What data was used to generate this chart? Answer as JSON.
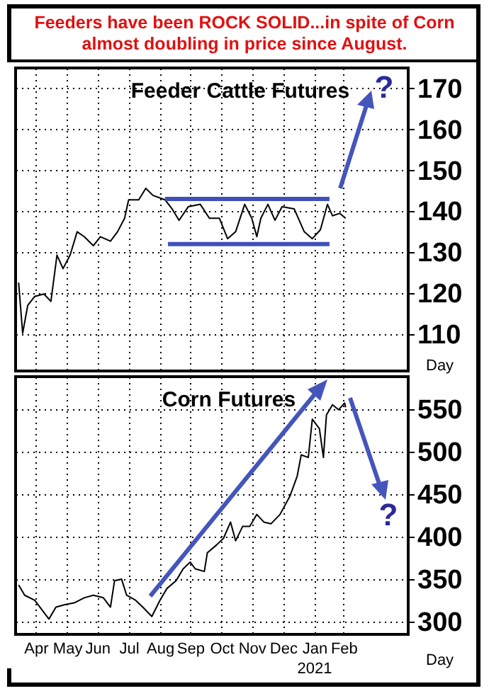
{
  "chart_data": [
    {
      "type": "line",
      "title": "Feeders have been ROCK SOLID...in spite of Corn almost doubling in price since August.",
      "subtitle": "Feeder Cattle Futures",
      "ylabel": "Day",
      "x": [
        "2020-03-29",
        "2020-04-02",
        "2020-04-07",
        "2020-04-14",
        "2020-04-23",
        "2020-04-30",
        "2020-05-06",
        "2020-05-12",
        "2020-05-19",
        "2020-05-26",
        "2020-06-02",
        "2020-06-11",
        "2020-06-18",
        "2020-06-28",
        "2020-07-05",
        "2020-07-12",
        "2020-07-16",
        "2020-07-26",
        "2020-08-02",
        "2020-08-09",
        "2020-08-21",
        "2020-08-28",
        "2020-09-04",
        "2020-09-13",
        "2020-09-25",
        "2020-10-04",
        "2020-10-14",
        "2020-10-22",
        "2020-10-30",
        "2020-11-08",
        "2020-11-15",
        "2020-11-20",
        "2020-11-24",
        "2020-12-01",
        "2020-12-08",
        "2020-12-15",
        "2020-12-27",
        "2021-01-06",
        "2021-01-14",
        "2021-01-22",
        "2021-01-29",
        "2021-02-03",
        "2021-02-10",
        "2021-02-16"
      ],
      "series": [
        {
          "color": "#000000",
          "values": [
            122.6,
            110.2,
            117,
            119.2,
            119.8,
            118,
            129.3,
            126,
            129.3,
            135,
            133.8,
            131.6,
            133.8,
            132.7,
            135,
            138.3,
            142.8,
            142.8,
            145.6,
            143.9,
            142.8,
            140.6,
            137.8,
            141.1,
            141.7,
            138.3,
            138.3,
            133.3,
            135,
            141.7,
            138.3,
            133.8,
            138.3,
            141.7,
            137.8,
            141.1,
            140.6,
            135,
            133.3,
            135.5,
            141.7,
            138.9,
            139.5,
            138.3
          ]
        },
        {
          "type": "line",
          "color": "#4050b8",
          "x": [
            "2020-08-21",
            "2021-01-31"
          ],
          "values": [
            143,
            143
          ]
        },
        {
          "type": "line",
          "color": "#4050b8",
          "x": [
            "2020-08-24",
            "2021-01-31"
          ],
          "values": [
            132,
            132
          ]
        }
      ],
      "xlim": [
        "2020-03-26",
        "2021-04-19"
      ],
      "xticks": [
        {
          "value": "2020-04-15",
          "label": null
        },
        {
          "value": "2020-05-16",
          "label": null
        },
        {
          "value": "2020-06-15",
          "label": null
        },
        {
          "value": "2020-07-16",
          "label": null
        },
        {
          "value": "2020-08-16",
          "label": null
        },
        {
          "value": "2020-09-15",
          "label": null
        },
        {
          "value": "2020-10-16",
          "label": null
        },
        {
          "value": "2020-11-15",
          "label": null
        },
        {
          "value": "2020-12-16",
          "label": null
        },
        {
          "value": "2021-01-16",
          "label": null
        },
        {
          "value": "2021-02-14",
          "label": null
        }
      ],
      "ylim": [
        101,
        175
      ],
      "yticks": [
        110,
        120,
        130,
        140,
        150,
        160,
        170
      ],
      "tick_labels": "y",
      "grid": true,
      "annotations": [
        "?"
      ]
    },
    {
      "type": "line",
      "title": "Corn Futures",
      "ylabel": "Day",
      "x": [
        "2020-03-29",
        "2020-04-04",
        "2020-04-14",
        "2020-04-21",
        "2020-04-28",
        "2020-05-05",
        "2020-05-14",
        "2020-05-23",
        "2020-06-02",
        "2020-06-11",
        "2020-06-21",
        "2020-06-28",
        "2020-07-02",
        "2020-07-09",
        "2020-07-14",
        "2020-07-23",
        "2020-07-30",
        "2020-08-08",
        "2020-08-16",
        "2020-08-23",
        "2020-09-01",
        "2020-09-08",
        "2020-09-15",
        "2020-09-20",
        "2020-09-29",
        "2020-10-02",
        "2020-10-11",
        "2020-10-18",
        "2020-10-25",
        "2020-10-30",
        "2020-11-06",
        "2020-11-13",
        "2020-11-20",
        "2020-11-27",
        "2020-12-04",
        "2020-12-13",
        "2020-12-23",
        "2020-12-30",
        "2021-01-03",
        "2021-01-10",
        "2021-01-14",
        "2021-01-21",
        "2021-01-25",
        "2021-01-28",
        "2021-02-03",
        "2021-02-09",
        "2021-02-15",
        "2021-02-16"
      ],
      "series": [
        {
          "color": "#000000",
          "values": [
            343,
            331,
            325,
            314,
            303,
            317,
            320,
            322,
            328,
            331,
            328,
            317,
            348,
            350,
            331,
            325,
            317,
            306,
            325,
            339,
            348,
            362,
            370,
            362,
            359,
            381,
            390,
            398,
            417,
            395,
            412,
            412,
            426,
            417,
            415,
            426,
            448,
            471,
            496,
            493,
            538,
            527,
            493,
            543,
            555,
            549,
            557,
            552
          ]
        }
      ],
      "xlim": [
        "2020-03-26",
        "2021-04-19"
      ],
      "xticks": [
        {
          "value": "2020-04-15",
          "label": "Apr"
        },
        {
          "value": "2020-05-16",
          "label": "May"
        },
        {
          "value": "2020-06-15",
          "label": "Jun"
        },
        {
          "value": "2020-07-16",
          "label": "Jul"
        },
        {
          "value": "2020-08-16",
          "label": "Aug"
        },
        {
          "value": "2020-09-15",
          "label": "Sep"
        },
        {
          "value": "2020-10-16",
          "label": "Oct"
        },
        {
          "value": "2020-11-15",
          "label": "Nov"
        },
        {
          "value": "2020-12-16",
          "label": "Dec"
        },
        {
          "value": "2021-01-16",
          "label": "Jan"
        },
        {
          "value": "2021-02-14",
          "label": "Feb"
        }
      ],
      "ylim": [
        285,
        588
      ],
      "yticks": [
        300,
        350,
        400,
        450,
        500,
        550
      ],
      "grid": true,
      "annotations": [
        "?",
        "2021"
      ]
    }
  ]
}
